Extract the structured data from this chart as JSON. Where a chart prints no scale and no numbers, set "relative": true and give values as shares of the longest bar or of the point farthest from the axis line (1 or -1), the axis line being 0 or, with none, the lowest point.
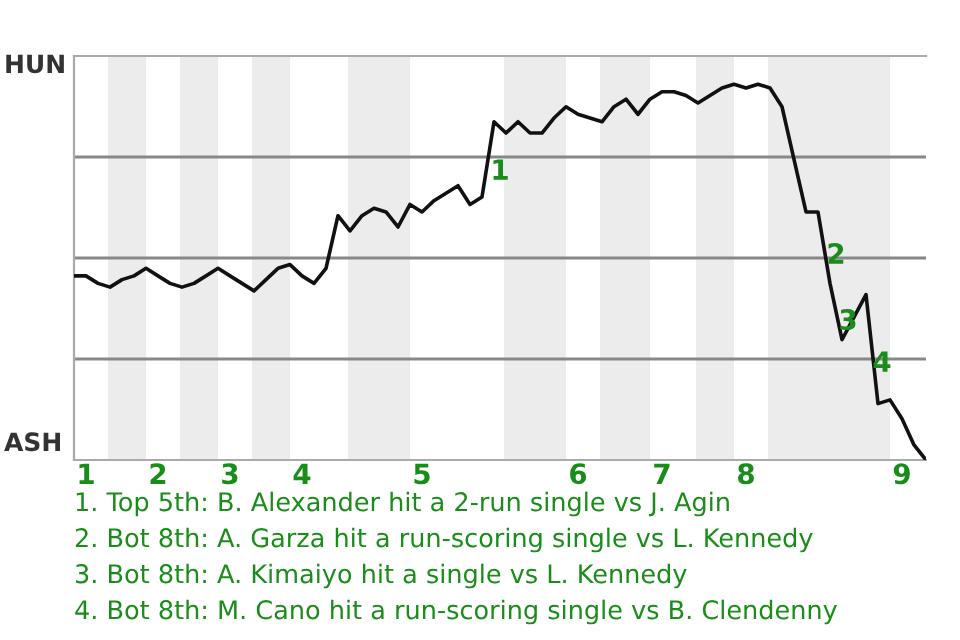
{
  "chart_data": {
    "type": "line",
    "relative": true,
    "categories": [
      null,
      "1",
      null,
      null,
      null,
      null,
      null,
      "2",
      null,
      null,
      null,
      null,
      null,
      "3",
      null,
      null,
      null,
      null,
      null,
      "4",
      null,
      null,
      null,
      null,
      null,
      null,
      null,
      null,
      null,
      "5",
      null,
      null,
      null,
      null,
      null,
      null,
      null,
      null,
      null,
      null,
      null,
      null,
      "6",
      null,
      null,
      null,
      null,
      null,
      null,
      "7",
      null,
      null,
      null,
      null,
      null,
      null,
      "8",
      null,
      null,
      null,
      null,
      null,
      null,
      null,
      null,
      null,
      null,
      null,
      null,
      "9",
      null,
      null
    ],
    "series": [
      {
        "color": "#111111",
        "values": [
          0.49,
          0.49,
          0.47,
          0.46,
          0.48,
          0.49,
          0.51,
          0.49,
          0.47,
          0.46,
          0.47,
          0.49,
          0.51,
          0.49,
          0.47,
          0.45,
          0.48,
          0.51,
          0.52,
          0.49,
          0.47,
          0.51,
          0.65,
          0.61,
          0.65,
          0.67,
          0.66,
          0.62,
          0.68,
          0.66,
          0.69,
          0.71,
          0.73,
          0.68,
          0.7,
          0.9,
          0.87,
          0.9,
          0.87,
          0.87,
          0.91,
          0.94,
          0.92,
          0.91,
          0.9,
          0.94,
          0.96,
          0.92,
          0.96,
          0.98,
          0.98,
          0.97,
          0.95,
          0.97,
          0.99,
          1,
          0.99,
          1,
          0.99,
          0.94,
          0.8,
          0.66,
          0.66,
          0.47,
          0.32,
          0.38,
          0.44,
          0.15,
          0.16,
          0.11,
          0.04,
          0
        ]
      }
    ],
    "grid": "y",
    "marker": "none",
    "line_style": "solid",
    "annotations": [
      "HUN",
      "ASH",
      "1",
      "2",
      "3",
      "4",
      "1. Top 5th: B. Alexander hit a 2-run single vs J. Agin",
      "2. Bot 8th: A. Garza hit a run-scoring single vs L. Kennedy",
      "3. Bot 8th: A. Kimaiyo hit a single vs L. Kennedy",
      "4. Bot 8th: M. Cano hit a run-scoring single vs B. Clendenny"
    ]
  }
}
